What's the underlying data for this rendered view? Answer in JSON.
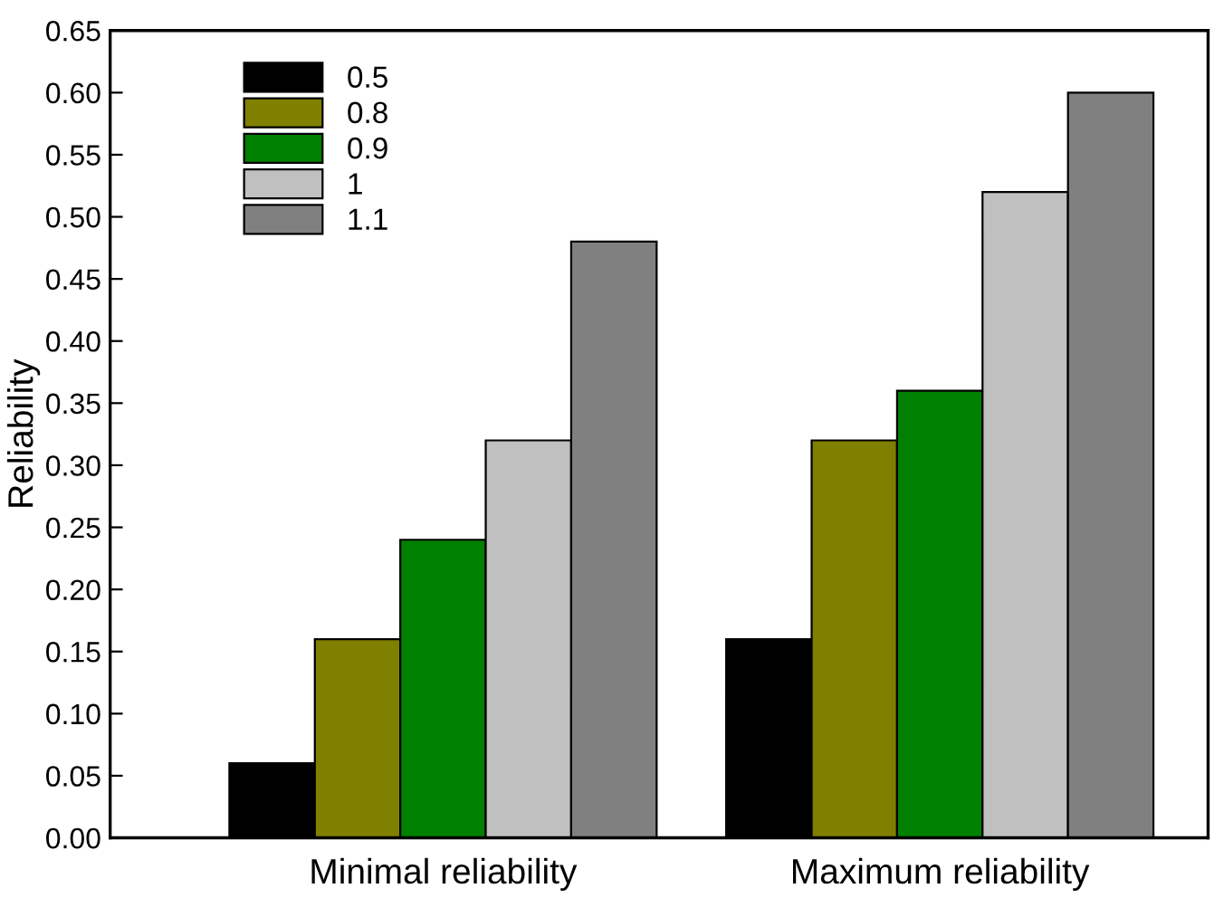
{
  "chart_data": {
    "type": "bar",
    "ylabel": "Reliability",
    "categories": [
      "Minimal reliability",
      "Maximum reliability"
    ],
    "series": [
      {
        "name": "0.5",
        "color": "#000000",
        "values": [
          0.06,
          0.16
        ]
      },
      {
        "name": "0.8",
        "color": "#808000",
        "values": [
          0.16,
          0.32
        ]
      },
      {
        "name": "0.9",
        "color": "#008000",
        "values": [
          0.24,
          0.36
        ]
      },
      {
        "name": "1",
        "color": "#c0c0c0",
        "values": [
          0.32,
          0.52
        ]
      },
      {
        "name": "1.1",
        "color": "#808080",
        "values": [
          0.48,
          0.6
        ]
      }
    ],
    "ylim": [
      0,
      0.65
    ],
    "yticks": [
      {
        "value": 0,
        "label": "0.00"
      },
      {
        "value": 0.05,
        "label": "0.05"
      },
      {
        "value": 0.1,
        "label": "0.10"
      },
      {
        "value": 0.15,
        "label": "0.15"
      },
      {
        "value": 0.2,
        "label": "0.20"
      },
      {
        "value": 0.25,
        "label": "0.25"
      },
      {
        "value": 0.3,
        "label": "0.30"
      },
      {
        "value": 0.35,
        "label": "0.35"
      },
      {
        "value": 0.4,
        "label": "0.40"
      },
      {
        "value": 0.45,
        "label": "0.45"
      },
      {
        "value": 0.5,
        "label": "0.50"
      },
      {
        "value": 0.55,
        "label": "0.55"
      },
      {
        "value": 0.6,
        "label": "0.60"
      },
      {
        "value": 0.65,
        "label": "0.65"
      }
    ],
    "grid": false,
    "legend": "top left"
  }
}
